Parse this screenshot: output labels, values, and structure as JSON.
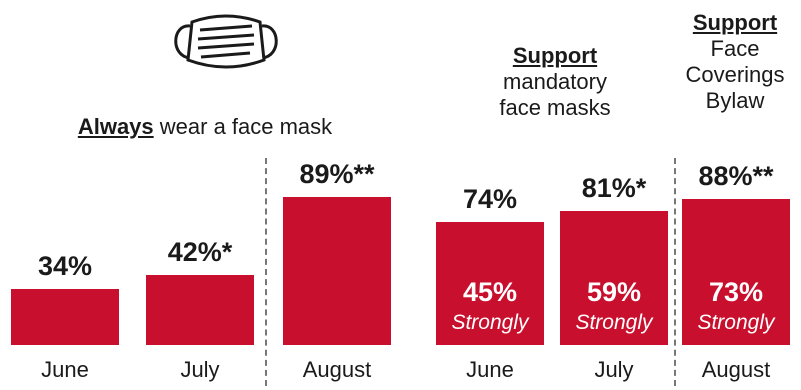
{
  "colors": {
    "bar": "#c8102e",
    "divider": "#777777"
  },
  "icon": "face-mask-icon",
  "groups": {
    "mask": {
      "header_bold": "Always",
      "header_rest": " wear a face mask"
    },
    "mandatory": {
      "header_bold": "Support",
      "header_line2": "mandatory",
      "header_line3": "face masks"
    },
    "bylaw": {
      "header_bold": "Support",
      "header_line2": "Face",
      "header_line3": "Coverings",
      "header_line4": "Bylaw"
    }
  },
  "strongly_label": "Strongly",
  "chart_data": {
    "type": "bar",
    "ylim": [
      0,
      100
    ],
    "bars": [
      {
        "group": "Always wear a face mask",
        "category": "June",
        "value": 34,
        "label": "34%"
      },
      {
        "group": "Always wear a face mask",
        "category": "July",
        "value": 42,
        "label": "42%*"
      },
      {
        "group": "Always wear a face mask",
        "category": "August",
        "value": 89,
        "label": "89%**"
      },
      {
        "group": "Support mandatory face masks",
        "category": "June",
        "value": 74,
        "label": "74%",
        "strongly": 45,
        "strongly_label": "45%"
      },
      {
        "group": "Support mandatory face masks",
        "category": "July",
        "value": 81,
        "label": "81%*",
        "strongly": 59,
        "strongly_label": "59%"
      },
      {
        "group": "Support Face Coverings Bylaw",
        "category": "August",
        "value": 88,
        "label": "88%**",
        "strongly": 73,
        "strongly_label": "73%"
      }
    ]
  }
}
